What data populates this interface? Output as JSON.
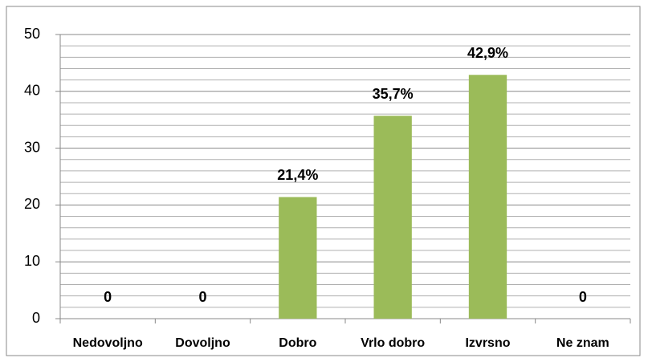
{
  "chart_data": {
    "type": "bar",
    "categories": [
      "Nedovoljno",
      "Dovoljno",
      "Dobro",
      "Vrlo dobro",
      "Izvrsno",
      "Ne znam"
    ],
    "values": [
      0,
      0,
      21.4,
      35.7,
      42.9,
      0
    ],
    "value_labels": [
      "0",
      "0",
      "21,4%",
      "35,7%",
      "42,9%",
      "0"
    ],
    "color": "#9bbb59",
    "ylim": [
      0,
      50
    ],
    "yticks": [
      0,
      10,
      20,
      30,
      40,
      50
    ],
    "minor_yticks": [
      2,
      4,
      6,
      8,
      12,
      14,
      16,
      18,
      22,
      24,
      26,
      28,
      32,
      34,
      36,
      38,
      42,
      44,
      46,
      48
    ],
    "grid": true
  }
}
